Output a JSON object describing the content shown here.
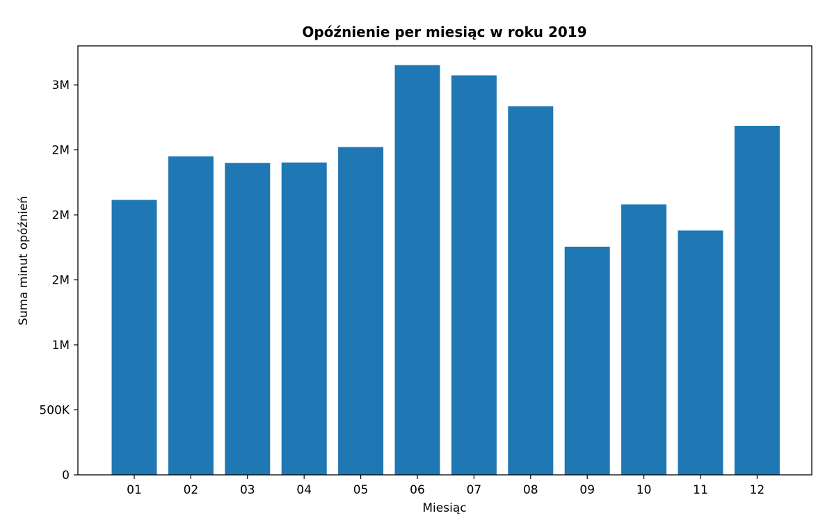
{
  "chart_data": {
    "type": "bar",
    "title": "Opóźnienie per miesiąc w roku 2019",
    "xlabel": "Miesiąc",
    "ylabel": "Suma minut opóźnień",
    "categories": [
      "01",
      "02",
      "03",
      "04",
      "05",
      "06",
      "07",
      "08",
      "09",
      "10",
      "11",
      "12"
    ],
    "values": [
      2115000,
      2450000,
      2400000,
      2403000,
      2522000,
      3152000,
      3073000,
      2835000,
      1755000,
      2080000,
      1880000,
      2685000
    ],
    "ylim": [
      0,
      3300000
    ],
    "yticks": [
      {
        "value": 0,
        "label": "0"
      },
      {
        "value": 500000,
        "label": "500K"
      },
      {
        "value": 1000000,
        "label": "1M"
      },
      {
        "value": 1500000,
        "label": "2M"
      },
      {
        "value": 2000000,
        "label": "2M"
      },
      {
        "value": 2500000,
        "label": "2M"
      },
      {
        "value": 3000000,
        "label": "3M"
      }
    ],
    "bar_color": "#1f77b4",
    "grid": false,
    "legend": "none"
  }
}
